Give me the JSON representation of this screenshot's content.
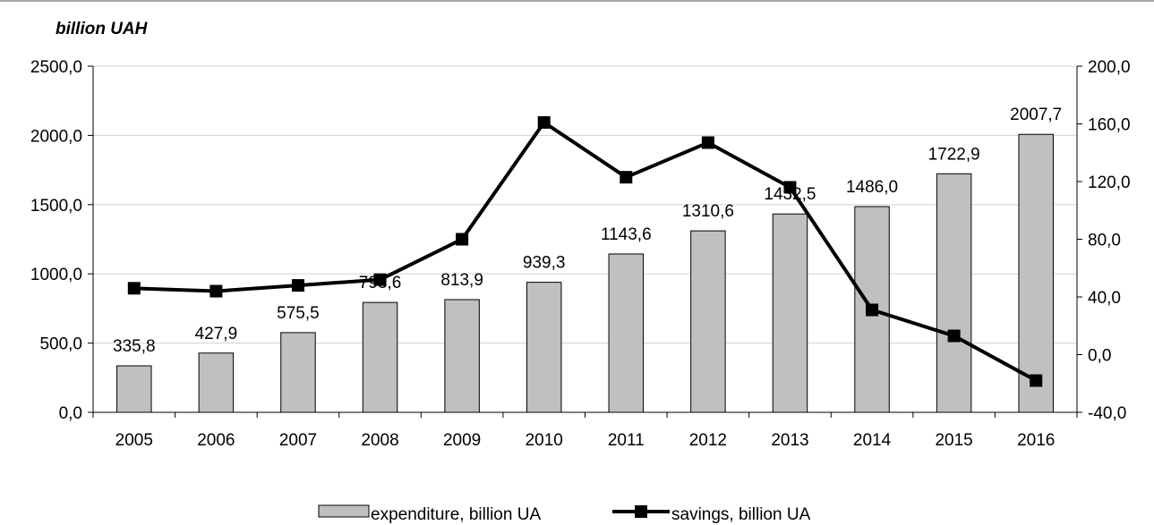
{
  "chart_data": {
    "type": "bar",
    "unit_label": "billion UAH",
    "categories": [
      "2005",
      "2006",
      "2007",
      "2008",
      "2009",
      "2010",
      "2011",
      "2012",
      "2013",
      "2014",
      "2015",
      "2016"
    ],
    "series": [
      {
        "name": "expenditure, billion UA",
        "type": "bar",
        "axis": "left",
        "values": [
          335.8,
          427.9,
          575.5,
          793.6,
          813.9,
          939.3,
          1143.6,
          1310.6,
          1432.5,
          1486.0,
          1722.9,
          2007.7
        ],
        "labels": [
          "335,8",
          "427,9",
          "575,5",
          "793,6",
          "813,9",
          "939,3",
          "1143,6",
          "1310,6",
          "1432,5",
          "1486,0",
          "1722,9",
          "2007,7"
        ],
        "color": "#c0c0c0"
      },
      {
        "name": "savings, billion UA",
        "type": "line",
        "axis": "right",
        "values": [
          46,
          44,
          48,
          52,
          80,
          161,
          123,
          147,
          116,
          31,
          13,
          -18
        ],
        "color": "#000000"
      }
    ],
    "y_left": {
      "min": 0,
      "max": 2500,
      "ticks": [
        0,
        500,
        1000,
        1500,
        2000,
        2500
      ],
      "tick_labels": [
        "0,0",
        "500,0",
        "1000,0",
        "1500,0",
        "2000,0",
        "2500,0"
      ]
    },
    "y_right": {
      "min": -40,
      "max": 200,
      "ticks": [
        -40,
        0,
        40,
        80,
        120,
        160,
        200
      ],
      "tick_labels": [
        "-40,0",
        "0,0",
        "40,0",
        "80,0",
        "120,0",
        "160,0",
        "200,0"
      ]
    },
    "grid": true,
    "legend_position": "bottom"
  }
}
